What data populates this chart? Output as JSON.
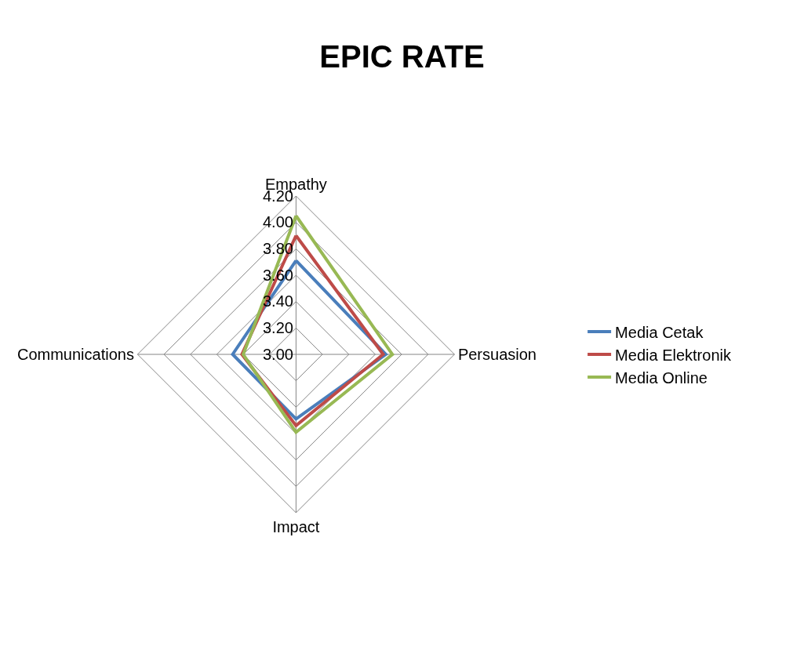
{
  "chart_data": {
    "type": "radar",
    "title": "EPIC RATE",
    "categories": [
      "Empathy",
      "Persuasion",
      "Impact",
      "Communications"
    ],
    "series": [
      {
        "name": "Media Cetak",
        "color": "#4a7ebb",
        "values": [
          3.71,
          3.68,
          3.49,
          3.48
        ]
      },
      {
        "name": "Media Elektronik",
        "color": "#be4b48",
        "values": [
          3.9,
          3.66,
          3.54,
          3.41
        ]
      },
      {
        "name": "Media Online",
        "color": "#98b954",
        "values": [
          4.05,
          3.73,
          3.59,
          3.4
        ]
      }
    ],
    "ylim": [
      3.0,
      4.2
    ],
    "yticks": [
      {
        "value": 3.0,
        "label": "3.00"
      },
      {
        "value": 3.2,
        "label": "3.20"
      },
      {
        "value": 3.4,
        "label": "3.40"
      },
      {
        "value": 3.6,
        "label": "3.60"
      },
      {
        "value": 3.8,
        "label": "3.80"
      },
      {
        "value": 4.0,
        "label": "4.00"
      },
      {
        "value": 4.2,
        "label": "4.20"
      }
    ],
    "grid": true,
    "legend": "right",
    "marker": "none",
    "line_style": "solid"
  }
}
